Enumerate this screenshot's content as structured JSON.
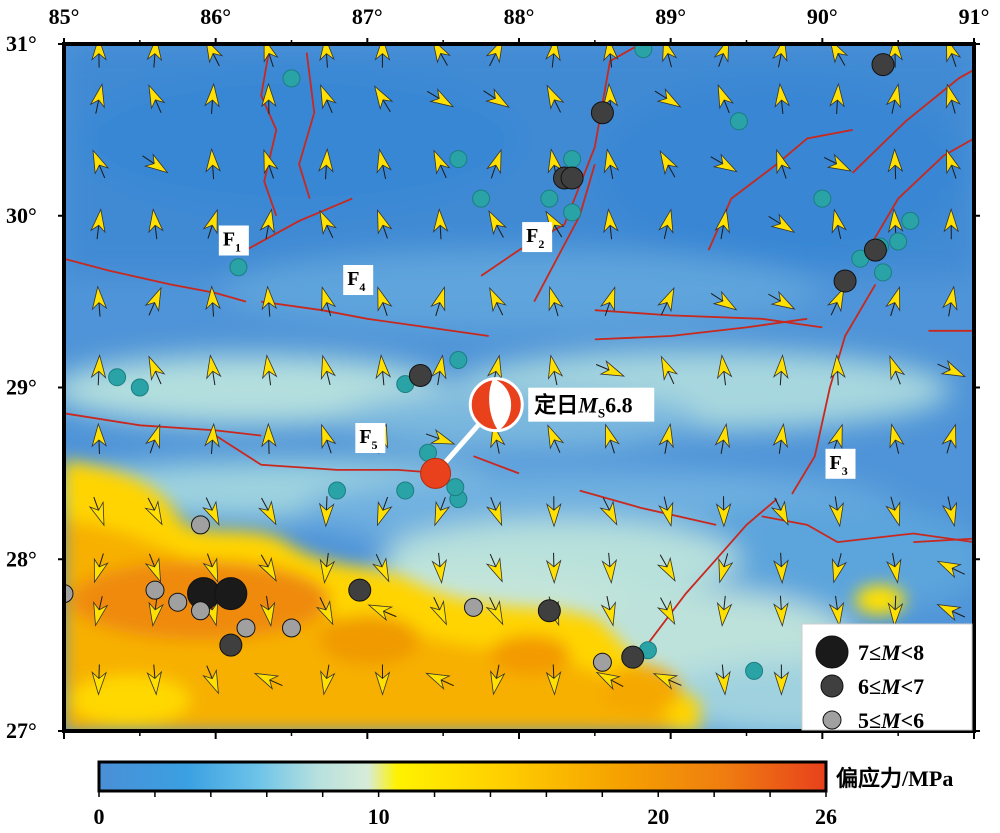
{
  "map": {
    "lon_range": [
      85,
      91
    ],
    "lat_range": [
      27,
      31
    ],
    "lon_ticks": [
      "85°",
      "86°",
      "87°",
      "88°",
      "89°",
      "90°",
      "91°"
    ],
    "lat_ticks": [
      "31°",
      "30°",
      "29°",
      "28°",
      "27°"
    ]
  },
  "event": {
    "label_prefix": "定日",
    "label_m": "M",
    "label_sub": "S",
    "label_mag": "6.8",
    "lon": 87.45,
    "lat": 28.5,
    "beachball_lon": 87.85,
    "beachball_lat": 28.9,
    "colors": {
      "dot": "#e8411c",
      "beachball": "#e8411c"
    }
  },
  "faults": [
    {
      "id": "F",
      "sub": "1",
      "lon": 86.1,
      "lat": 29.85
    },
    {
      "id": "F",
      "sub": "2",
      "lon": 88.1,
      "lat": 29.87
    },
    {
      "id": "F",
      "sub": "3",
      "lon": 90.1,
      "lat": 28.55
    },
    {
      "id": "F",
      "sub": "4",
      "lon": 86.92,
      "lat": 29.62
    },
    {
      "id": "F",
      "sub": "5",
      "lon": 87.0,
      "lat": 28.7
    }
  ],
  "legend": [
    {
      "label_pre": "7≤",
      "label_m": "M",
      "label_post": "<8",
      "size": "large",
      "color": "#1a1a1a"
    },
    {
      "label_pre": "6≤",
      "label_m": "M",
      "label_post": "<7",
      "size": "medium",
      "color": "#3f3f3f"
    },
    {
      "label_pre": "5≤",
      "label_m": "M",
      "label_post": "<6",
      "size": "small",
      "color": "#a0a0a0"
    }
  ],
  "colorbar": {
    "title": "偏应力/MPa",
    "ticks": [
      "0",
      "10",
      "20",
      "26"
    ],
    "tick_values": [
      0,
      10,
      20,
      26
    ],
    "max": 26,
    "colors": [
      "#4a8fd6",
      "#2aa9e6",
      "#a8dcdc",
      "#c6e6dc",
      "#fff200",
      "#ffd200",
      "#f5a000",
      "#ef7d10",
      "#e8411c"
    ]
  },
  "quakes": [
    {
      "lon": 85.92,
      "lat": 27.8,
      "mag": 7.5
    },
    {
      "lon": 86.1,
      "lat": 27.8,
      "mag": 7.5
    },
    {
      "lon": 86.1,
      "lat": 27.5,
      "mag": 6.5
    },
    {
      "lon": 86.95,
      "lat": 27.82,
      "mag": 6.5
    },
    {
      "lon": 88.2,
      "lat": 27.7,
      "mag": 6.5
    },
    {
      "lon": 88.75,
      "lat": 27.43,
      "mag": 6.5
    },
    {
      "lon": 87.35,
      "lat": 29.07,
      "mag": 6.5
    },
    {
      "lon": 88.3,
      "lat": 30.22,
      "mag": 6.5
    },
    {
      "lon": 88.35,
      "lat": 30.22,
      "mag": 6.5
    },
    {
      "lon": 88.55,
      "lat": 30.6,
      "mag": 6.5
    },
    {
      "lon": 90.4,
      "lat": 30.88,
      "mag": 6.5
    },
    {
      "lon": 90.15,
      "lat": 29.62,
      "mag": 6.5
    },
    {
      "lon": 90.35,
      "lat": 29.8,
      "mag": 6.5
    },
    {
      "lon": 85.6,
      "lat": 27.82,
      "mag": 5.5
    },
    {
      "lon": 85.75,
      "lat": 27.75,
      "mag": 5.5
    },
    {
      "lon": 85.9,
      "lat": 27.7,
      "mag": 5.5
    },
    {
      "lon": 86.2,
      "lat": 27.6,
      "mag": 5.5
    },
    {
      "lon": 86.5,
      "lat": 27.6,
      "mag": 5.5
    },
    {
      "lon": 87.7,
      "lat": 27.72,
      "mag": 5.5
    },
    {
      "lon": 88.55,
      "lat": 27.4,
      "mag": 5.5
    },
    {
      "lon": 85.9,
      "lat": 28.2,
      "mag": 5.5
    },
    {
      "lon": 85.0,
      "lat": 27.8,
      "mag": 5.5
    }
  ],
  "small_quakes": [
    {
      "lon": 86.5,
      "lat": 30.8
    },
    {
      "lon": 87.6,
      "lat": 30.33
    },
    {
      "lon": 87.75,
      "lat": 30.1
    },
    {
      "lon": 88.35,
      "lat": 30.33
    },
    {
      "lon": 88.2,
      "lat": 30.1
    },
    {
      "lon": 88.35,
      "lat": 30.02
    },
    {
      "lon": 86.15,
      "lat": 29.7
    },
    {
      "lon": 85.35,
      "lat": 29.06
    },
    {
      "lon": 85.5,
      "lat": 29.0
    },
    {
      "lon": 87.25,
      "lat": 29.02
    },
    {
      "lon": 87.6,
      "lat": 29.16
    },
    {
      "lon": 87.4,
      "lat": 28.62
    },
    {
      "lon": 87.25,
      "lat": 28.4
    },
    {
      "lon": 86.8,
      "lat": 28.4
    },
    {
      "lon": 87.6,
      "lat": 28.35
    },
    {
      "lon": 87.58,
      "lat": 28.42
    },
    {
      "lon": 89.45,
      "lat": 30.55
    },
    {
      "lon": 90.0,
      "lat": 30.1
    },
    {
      "lon": 90.25,
      "lat": 29.75
    },
    {
      "lon": 90.4,
      "lat": 29.67
    },
    {
      "lon": 90.5,
      "lat": 29.85
    },
    {
      "lon": 90.58,
      "lat": 29.97
    },
    {
      "lon": 90.38,
      "lat": 29.82
    },
    {
      "lon": 88.85,
      "lat": 27.47
    },
    {
      "lon": 89.55,
      "lat": 27.35
    },
    {
      "lon": 88.82,
      "lat": 30.97
    }
  ],
  "arrows": {
    "color": "#ffe000",
    "grid_lon": [
      85.23,
      85.6,
      85.98,
      86.35,
      86.73,
      87.1,
      87.48,
      87.85,
      88.23,
      88.6,
      88.98,
      89.35,
      89.73,
      90.1,
      90.48,
      90.85
    ],
    "grid_lat": [
      30.95,
      30.68,
      30.3,
      29.95,
      29.5,
      29.1,
      28.7,
      28.28,
      27.95,
      27.7,
      27.3
    ]
  },
  "fault_traces": [
    [
      [
        85.0,
        29.75
      ],
      [
        85.3,
        29.68
      ],
      [
        85.7,
        29.6
      ],
      [
        86.0,
        29.55
      ],
      [
        86.2,
        29.5
      ]
    ],
    [
      [
        86.3,
        29.5
      ],
      [
        86.7,
        29.45
      ],
      [
        87.0,
        29.4
      ],
      [
        87.4,
        29.35
      ],
      [
        87.8,
        29.3
      ]
    ],
    [
      [
        86.2,
        29.8
      ],
      [
        86.55,
        29.97
      ],
      [
        86.9,
        30.1
      ]
    ],
    [
      [
        86.35,
        30.95
      ],
      [
        86.3,
        30.7
      ],
      [
        86.4,
        30.5
      ],
      [
        86.32,
        30.2
      ],
      [
        86.4,
        30.0
      ]
    ],
    [
      [
        86.6,
        30.95
      ],
      [
        86.65,
        30.6
      ],
      [
        86.55,
        30.3
      ],
      [
        86.62,
        30.1
      ]
    ],
    [
      [
        87.75,
        29.65
      ],
      [
        88.0,
        29.8
      ],
      [
        88.3,
        29.95
      ],
      [
        88.5,
        30.4
      ],
      [
        88.6,
        30.9
      ],
      [
        88.8,
        31.0
      ]
    ],
    [
      [
        88.1,
        29.5
      ],
      [
        88.25,
        29.75
      ],
      [
        88.4,
        30.0
      ],
      [
        88.5,
        30.3
      ]
    ],
    [
      [
        88.5,
        29.28
      ],
      [
        89.0,
        29.3
      ],
      [
        89.5,
        29.35
      ],
      [
        89.9,
        29.4
      ]
    ],
    [
      [
        88.5,
        29.45
      ],
      [
        89.0,
        29.42
      ],
      [
        89.6,
        29.4
      ],
      [
        90.0,
        29.35
      ]
    ],
    [
      [
        89.25,
        29.8
      ],
      [
        89.4,
        30.1
      ],
      [
        89.7,
        30.3
      ],
      [
        89.9,
        30.45
      ],
      [
        90.2,
        30.5
      ]
    ],
    [
      [
        90.2,
        30.25
      ],
      [
        90.55,
        30.55
      ],
      [
        90.9,
        30.8
      ],
      [
        91.0,
        30.85
      ]
    ],
    [
      [
        90.3,
        29.8
      ],
      [
        90.5,
        30.1
      ],
      [
        90.8,
        30.35
      ],
      [
        91.0,
        30.45
      ]
    ],
    [
      [
        89.8,
        28.38
      ],
      [
        89.95,
        28.6
      ],
      [
        90.05,
        29.0
      ],
      [
        90.15,
        29.3
      ],
      [
        90.35,
        29.6
      ]
    ],
    [
      [
        88.8,
        27.45
      ],
      [
        89.1,
        27.8
      ],
      [
        89.3,
        28.0
      ],
      [
        89.5,
        28.2
      ],
      [
        89.7,
        28.35
      ]
    ],
    [
      [
        85.0,
        28.85
      ],
      [
        85.5,
        28.78
      ],
      [
        86.0,
        28.75
      ],
      [
        86.3,
        28.72
      ]
    ],
    [
      [
        86.0,
        28.72
      ],
      [
        86.3,
        28.55
      ],
      [
        86.8,
        28.52
      ],
      [
        87.2,
        28.52
      ],
      [
        87.5,
        28.5
      ]
    ],
    [
      [
        87.7,
        28.6
      ],
      [
        88.0,
        28.5
      ]
    ],
    [
      [
        88.4,
        28.4
      ],
      [
        88.8,
        28.3
      ],
      [
        89.3,
        28.2
      ]
    ],
    [
      [
        89.6,
        28.25
      ],
      [
        89.9,
        28.2
      ],
      [
        90.1,
        28.1
      ],
      [
        90.6,
        28.15
      ],
      [
        91.0,
        28.1
      ]
    ],
    [
      [
        90.6,
        28.1
      ],
      [
        91.0,
        28.12
      ]
    ],
    [
      [
        90.7,
        29.33
      ],
      [
        91.0,
        29.33
      ]
    ]
  ]
}
